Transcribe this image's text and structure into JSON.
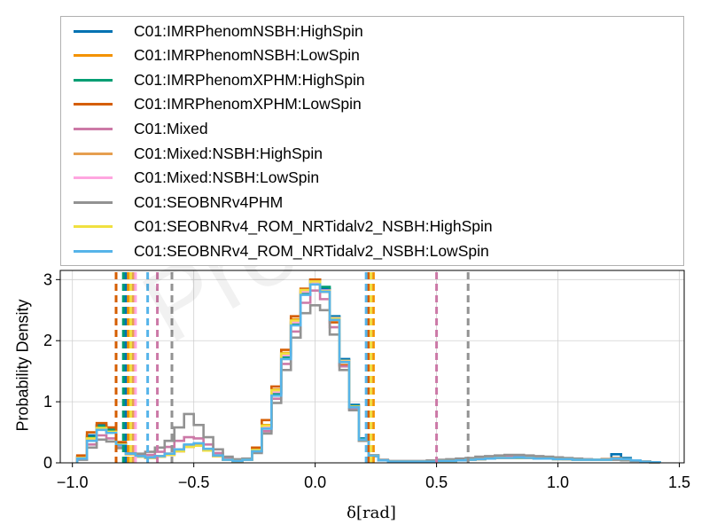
{
  "watermark": "Preliminary",
  "chart_data": {
    "type": "histogram",
    "xlabel": "δ[rad]",
    "ylabel": "Probability Density",
    "xlim": [
      -1.05,
      1.52
    ],
    "ylim": [
      0,
      3.15
    ],
    "xticks": [
      -1.0,
      -0.5,
      0.0,
      0.5,
      1.0,
      1.5
    ],
    "xtick_labels": [
      "−1.0",
      "−0.5",
      "0.0",
      "0.5",
      "1.0",
      "1.5"
    ],
    "yticks": [
      0,
      1,
      2,
      3
    ],
    "ytick_labels": [
      "0",
      "1",
      "2",
      "3"
    ],
    "grid": true,
    "legend_position": "above plot",
    "bin_edges": [
      -0.98,
      -0.94,
      -0.9,
      -0.86,
      -0.82,
      -0.78,
      -0.74,
      -0.7,
      -0.66,
      -0.62,
      -0.58,
      -0.54,
      -0.5,
      -0.46,
      -0.42,
      -0.38,
      -0.34,
      -0.3,
      -0.26,
      -0.22,
      -0.18,
      -0.14,
      -0.1,
      -0.06,
      -0.02,
      0.02,
      0.06,
      0.1,
      0.14,
      0.18,
      0.22,
      0.26,
      0.3,
      0.34,
      0.38,
      0.42,
      0.46,
      0.5,
      0.54,
      0.58,
      0.62,
      0.66,
      0.7,
      0.74,
      0.78,
      0.82,
      0.86,
      0.9,
      0.94,
      0.98,
      1.02,
      1.06,
      1.1,
      1.14,
      1.18,
      1.22,
      1.26,
      1.3,
      1.34,
      1.38,
      1.42
    ],
    "series": [
      {
        "name": "C01:IMRPhenomNSBH:HighSpin",
        "color": "#0072b2",
        "interval": [
          -0.78,
          0.23
        ],
        "values": [
          0.1,
          0.45,
          0.62,
          0.55,
          0.32,
          0.15,
          0.1,
          0.08,
          0.1,
          0.14,
          0.2,
          0.28,
          0.3,
          0.22,
          0.12,
          0.05,
          0.03,
          0.05,
          0.2,
          0.6,
          1.15,
          1.75,
          2.3,
          2.8,
          2.95,
          2.85,
          2.4,
          1.7,
          0.95,
          0.4,
          0.12,
          0.04,
          0.02,
          0.02,
          0.02,
          0.02,
          0.02,
          0.03,
          0.03,
          0.04,
          0.05,
          0.06,
          0.07,
          0.08,
          0.09,
          0.09,
          0.08,
          0.08,
          0.07,
          0.07,
          0.06,
          0.05,
          0.05,
          0.05,
          0.06,
          0.14,
          0.08,
          0.04,
          0.02,
          0.01
        ]
      },
      {
        "name": "C01:IMRPhenomNSBH:LowSpin",
        "color": "#f39200",
        "interval": [
          -0.77,
          0.24
        ],
        "values": [
          0.08,
          0.4,
          0.58,
          0.52,
          0.3,
          0.14,
          0.1,
          0.08,
          0.1,
          0.13,
          0.19,
          0.26,
          0.28,
          0.2,
          0.11,
          0.05,
          0.03,
          0.05,
          0.22,
          0.62,
          1.2,
          1.8,
          2.35,
          2.85,
          2.98,
          2.8,
          2.35,
          1.65,
          0.92,
          0.38,
          0.11,
          0.04,
          0.02,
          0.02,
          0.02,
          0.02,
          0.02,
          0.03,
          0.03,
          0.04,
          0.05,
          0.06,
          0.07,
          0.08,
          0.08,
          0.09,
          0.08,
          0.07,
          0.07,
          0.06,
          0.06,
          0.05,
          0.05,
          0.05,
          0.05,
          0.07,
          0.06,
          0.04,
          0.02,
          0.01
        ]
      },
      {
        "name": "C01:IMRPhenomXPHM:HighSpin",
        "color": "#009e73",
        "interval": [
          -0.79,
          0.22
        ],
        "values": [
          0.09,
          0.42,
          0.6,
          0.54,
          0.31,
          0.15,
          0.1,
          0.08,
          0.1,
          0.14,
          0.2,
          0.27,
          0.29,
          0.21,
          0.11,
          0.05,
          0.03,
          0.05,
          0.19,
          0.58,
          1.12,
          1.72,
          2.28,
          2.78,
          3.0,
          2.88,
          2.38,
          1.68,
          0.93,
          0.39,
          0.12,
          0.04,
          0.02,
          0.02,
          0.02,
          0.02,
          0.02,
          0.03,
          0.03,
          0.04,
          0.05,
          0.06,
          0.07,
          0.08,
          0.08,
          0.08,
          0.08,
          0.07,
          0.07,
          0.06,
          0.06,
          0.05,
          0.05,
          0.05,
          0.05,
          0.07,
          0.06,
          0.04,
          0.02,
          0.01
        ]
      },
      {
        "name": "C01:IMRPhenomXPHM:LowSpin",
        "color": "#d55e00",
        "interval": [
          -0.82,
          0.22
        ],
        "values": [
          0.12,
          0.5,
          0.65,
          0.58,
          0.34,
          0.16,
          0.11,
          0.09,
          0.11,
          0.15,
          0.21,
          0.28,
          0.3,
          0.22,
          0.12,
          0.05,
          0.03,
          0.06,
          0.25,
          0.7,
          1.25,
          1.85,
          2.4,
          2.85,
          3.0,
          2.8,
          2.3,
          1.6,
          0.9,
          0.38,
          0.11,
          0.04,
          0.02,
          0.02,
          0.02,
          0.02,
          0.02,
          0.03,
          0.03,
          0.04,
          0.05,
          0.06,
          0.07,
          0.08,
          0.09,
          0.09,
          0.08,
          0.08,
          0.07,
          0.07,
          0.06,
          0.05,
          0.05,
          0.05,
          0.06,
          0.08,
          0.06,
          0.04,
          0.02,
          0.01
        ]
      },
      {
        "name": "C01:Mixed",
        "color": "#cc79a7",
        "interval": [
          -0.65,
          0.5
        ],
        "values": [
          0.06,
          0.3,
          0.45,
          0.4,
          0.25,
          0.14,
          0.12,
          0.13,
          0.18,
          0.26,
          0.36,
          0.42,
          0.4,
          0.3,
          0.16,
          0.07,
          0.04,
          0.06,
          0.18,
          0.52,
          1.05,
          1.62,
          2.15,
          2.62,
          2.82,
          2.68,
          2.22,
          1.58,
          0.88,
          0.36,
          0.11,
          0.04,
          0.02,
          0.02,
          0.02,
          0.02,
          0.03,
          0.03,
          0.04,
          0.05,
          0.06,
          0.07,
          0.08,
          0.09,
          0.1,
          0.1,
          0.1,
          0.09,
          0.08,
          0.08,
          0.07,
          0.06,
          0.06,
          0.05,
          0.05,
          0.06,
          0.05,
          0.04,
          0.02,
          0.01
        ]
      },
      {
        "name": "C01:Mixed:NSBH:HighSpin",
        "color": "#e69f50",
        "interval": [
          -0.75,
          0.23
        ],
        "values": [
          0.08,
          0.38,
          0.56,
          0.5,
          0.29,
          0.14,
          0.1,
          0.08,
          0.1,
          0.13,
          0.19,
          0.26,
          0.28,
          0.2,
          0.11,
          0.05,
          0.03,
          0.05,
          0.21,
          0.6,
          1.18,
          1.78,
          2.32,
          2.82,
          2.96,
          2.82,
          2.36,
          1.66,
          0.92,
          0.38,
          0.11,
          0.04,
          0.02,
          0.02,
          0.02,
          0.02,
          0.02,
          0.03,
          0.03,
          0.04,
          0.05,
          0.06,
          0.07,
          0.08,
          0.08,
          0.09,
          0.08,
          0.07,
          0.07,
          0.06,
          0.06,
          0.05,
          0.05,
          0.05,
          0.05,
          0.07,
          0.06,
          0.04,
          0.02,
          0.01
        ]
      },
      {
        "name": "C01:Mixed:NSBH:LowSpin",
        "color": "#ffa6e0",
        "interval": [
          -0.74,
          0.23
        ],
        "values": [
          0.08,
          0.38,
          0.55,
          0.5,
          0.29,
          0.14,
          0.1,
          0.08,
          0.1,
          0.13,
          0.19,
          0.26,
          0.28,
          0.2,
          0.11,
          0.05,
          0.03,
          0.05,
          0.2,
          0.59,
          1.16,
          1.76,
          2.3,
          2.8,
          2.95,
          2.82,
          2.37,
          1.67,
          0.92,
          0.38,
          0.11,
          0.04,
          0.02,
          0.02,
          0.02,
          0.02,
          0.02,
          0.03,
          0.03,
          0.04,
          0.05,
          0.06,
          0.07,
          0.08,
          0.08,
          0.09,
          0.08,
          0.07,
          0.07,
          0.06,
          0.06,
          0.05,
          0.05,
          0.05,
          0.05,
          0.07,
          0.06,
          0.04,
          0.02,
          0.01
        ]
      },
      {
        "name": "C01:SEOBNRv4PHM",
        "color": "#929292",
        "interval": [
          -0.59,
          0.63
        ],
        "values": [
          0.05,
          0.25,
          0.38,
          0.35,
          0.24,
          0.16,
          0.15,
          0.18,
          0.25,
          0.36,
          0.58,
          0.8,
          0.62,
          0.42,
          0.22,
          0.1,
          0.06,
          0.07,
          0.16,
          0.48,
          0.98,
          1.52,
          2.05,
          2.45,
          2.58,
          2.5,
          2.1,
          1.52,
          0.86,
          0.36,
          0.12,
          0.05,
          0.03,
          0.03,
          0.03,
          0.03,
          0.04,
          0.05,
          0.06,
          0.07,
          0.08,
          0.1,
          0.11,
          0.12,
          0.13,
          0.13,
          0.12,
          0.11,
          0.1,
          0.09,
          0.08,
          0.07,
          0.06,
          0.05,
          0.05,
          0.05,
          0.04,
          0.03,
          0.02,
          0.01
        ]
      },
      {
        "name": "C01:SEOBNRv4_ROM_NRTidalv2_NSBH:HighSpin",
        "color": "#f0e040",
        "interval": [
          -0.76,
          0.23
        ],
        "values": [
          0.08,
          0.4,
          0.57,
          0.51,
          0.3,
          0.14,
          0.1,
          0.08,
          0.1,
          0.13,
          0.19,
          0.26,
          0.28,
          0.2,
          0.11,
          0.05,
          0.03,
          0.05,
          0.21,
          0.61,
          1.19,
          1.79,
          2.33,
          2.83,
          2.97,
          2.81,
          2.36,
          1.66,
          0.92,
          0.38,
          0.11,
          0.04,
          0.02,
          0.02,
          0.02,
          0.02,
          0.02,
          0.03,
          0.03,
          0.04,
          0.05,
          0.06,
          0.07,
          0.08,
          0.08,
          0.09,
          0.08,
          0.07,
          0.07,
          0.06,
          0.06,
          0.05,
          0.05,
          0.05,
          0.05,
          0.07,
          0.06,
          0.04,
          0.02,
          0.01
        ]
      },
      {
        "name": "C01:SEOBNRv4_ROM_NRTidalv2_NSBH:LowSpin",
        "color": "#56b4e9",
        "interval": [
          -0.69,
          0.21
        ],
        "values": [
          0.07,
          0.36,
          0.54,
          0.49,
          0.29,
          0.15,
          0.11,
          0.09,
          0.11,
          0.15,
          0.22,
          0.3,
          0.32,
          0.23,
          0.12,
          0.05,
          0.03,
          0.05,
          0.19,
          0.56,
          1.1,
          1.7,
          2.25,
          2.75,
          2.92,
          2.8,
          2.34,
          1.65,
          0.91,
          0.38,
          0.11,
          0.04,
          0.02,
          0.02,
          0.02,
          0.02,
          0.02,
          0.03,
          0.03,
          0.04,
          0.05,
          0.06,
          0.07,
          0.08,
          0.08,
          0.09,
          0.08,
          0.07,
          0.07,
          0.06,
          0.06,
          0.05,
          0.05,
          0.05,
          0.05,
          0.07,
          0.06,
          0.04,
          0.02,
          0.01
        ]
      }
    ]
  }
}
